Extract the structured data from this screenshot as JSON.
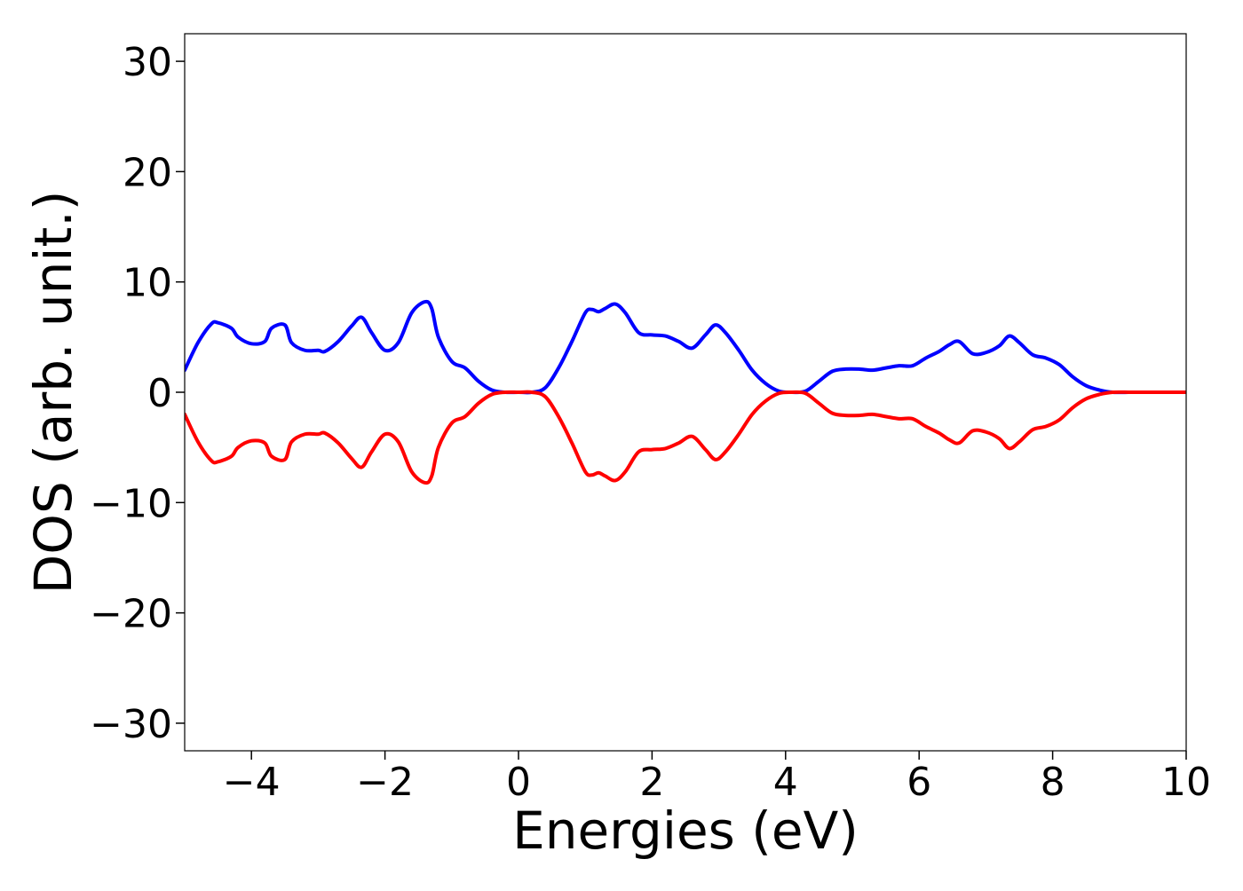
{
  "chart_data": {
    "type": "line",
    "title": "",
    "xlabel": "Energies (eV)",
    "ylabel": "DOS (arb. unit.)",
    "xlim": [
      -5,
      10
    ],
    "ylim": [
      -32.5,
      32.5
    ],
    "x_ticks": [
      -4,
      -2,
      0,
      2,
      4,
      6,
      8,
      10
    ],
    "x_tick_labels": [
      "−4",
      "−2",
      "0",
      "2",
      "4",
      "6",
      "8",
      "10"
    ],
    "y_ticks": [
      30,
      20,
      10,
      0,
      -10,
      -20,
      -30
    ],
    "y_tick_labels": [
      "30",
      "20",
      "10",
      "0",
      "−10",
      "−20",
      "−30"
    ],
    "grid": false,
    "legend": "none",
    "x": [
      -5.0,
      -4.8,
      -4.6,
      -4.5,
      -4.3,
      -4.2,
      -4.0,
      -3.8,
      -3.7,
      -3.5,
      -3.4,
      -3.2,
      -3.0,
      -2.9,
      -2.7,
      -2.5,
      -2.35,
      -2.2,
      -2.0,
      -1.8,
      -1.6,
      -1.4,
      -1.3,
      -1.2,
      -1.0,
      -0.8,
      -0.6,
      -0.4,
      -0.2,
      0.0,
      0.2,
      0.4,
      0.6,
      0.8,
      1.0,
      1.1,
      1.2,
      1.3,
      1.45,
      1.6,
      1.8,
      2.0,
      2.2,
      2.4,
      2.6,
      2.8,
      2.95,
      3.1,
      3.3,
      3.5,
      3.7,
      3.9,
      4.1,
      4.3,
      4.5,
      4.7,
      4.9,
      5.1,
      5.3,
      5.5,
      5.7,
      5.9,
      6.1,
      6.3,
      6.45,
      6.6,
      6.8,
      7.0,
      7.2,
      7.35,
      7.5,
      7.7,
      7.9,
      8.1,
      8.3,
      8.5,
      8.7,
      8.9,
      9.2,
      9.6,
      10.0
    ],
    "series": [
      {
        "color": "#0000ff",
        "values": [
          2.0,
          4.5,
          6.2,
          6.3,
          5.8,
          5.0,
          4.4,
          4.6,
          5.8,
          6.1,
          4.5,
          3.8,
          3.8,
          3.7,
          4.6,
          6.0,
          6.8,
          5.4,
          3.8,
          4.5,
          7.2,
          8.2,
          7.6,
          5.0,
          2.8,
          2.2,
          1.0,
          0.2,
          0.0,
          0.0,
          0.0,
          0.4,
          2.2,
          4.6,
          7.2,
          7.5,
          7.3,
          7.6,
          8.0,
          7.2,
          5.4,
          5.2,
          5.1,
          4.6,
          4.0,
          5.2,
          6.1,
          5.4,
          3.8,
          2.0,
          0.8,
          0.1,
          0.0,
          0.1,
          1.0,
          1.9,
          2.1,
          2.1,
          2.0,
          2.2,
          2.4,
          2.4,
          3.1,
          3.7,
          4.3,
          4.6,
          3.5,
          3.6,
          4.2,
          5.1,
          4.5,
          3.4,
          3.1,
          2.5,
          1.4,
          0.6,
          0.2,
          0.0,
          0.0,
          0.0,
          0.0
        ]
      },
      {
        "color": "#ff0000",
        "values": [
          -2.0,
          -4.5,
          -6.2,
          -6.3,
          -5.8,
          -5.0,
          -4.4,
          -4.6,
          -5.8,
          -6.1,
          -4.5,
          -3.8,
          -3.8,
          -3.7,
          -4.6,
          -6.0,
          -6.8,
          -5.4,
          -3.8,
          -4.5,
          -7.2,
          -8.2,
          -7.6,
          -5.0,
          -2.8,
          -2.2,
          -1.0,
          -0.2,
          0.0,
          0.0,
          0.0,
          -0.4,
          -2.2,
          -4.6,
          -7.2,
          -7.5,
          -7.3,
          -7.6,
          -8.0,
          -7.2,
          -5.4,
          -5.2,
          -5.1,
          -4.6,
          -4.0,
          -5.2,
          -6.1,
          -5.4,
          -3.8,
          -2.0,
          -0.8,
          -0.1,
          0.0,
          -0.1,
          -1.0,
          -1.9,
          -2.1,
          -2.1,
          -2.0,
          -2.2,
          -2.4,
          -2.4,
          -3.1,
          -3.7,
          -4.3,
          -4.6,
          -3.5,
          -3.6,
          -4.2,
          -5.1,
          -4.5,
          -3.4,
          -3.1,
          -2.5,
          -1.4,
          -0.6,
          -0.2,
          0.0,
          0.0,
          0.0,
          0.0
        ]
      }
    ]
  }
}
